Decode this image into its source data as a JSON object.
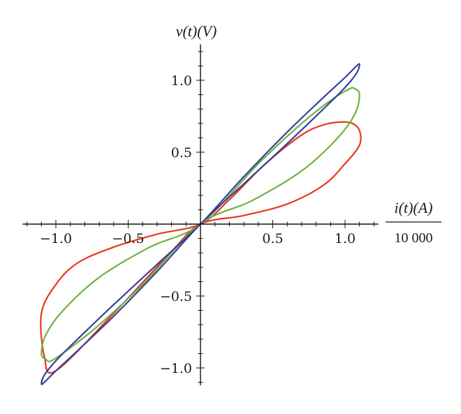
{
  "chart_data": {
    "type": "line",
    "title": "",
    "xlabel": "i(t)(A)",
    "xlabel_scale": "10 000",
    "ylabel": "v(t)(V)",
    "xlim": [
      -1.23,
      1.23
    ],
    "ylim": [
      -1.12,
      1.25
    ],
    "x_ticks": [
      -1.0,
      -0.5,
      0.5,
      1.0
    ],
    "x_tick_labels": [
      "−1.0",
      "−0.5",
      "0.5",
      "1.0"
    ],
    "y_ticks": [
      -1.0,
      -0.5,
      0.5,
      1.0
    ],
    "y_tick_labels": [
      "−1.0",
      "−0.5",
      "0.5",
      "1.0"
    ],
    "grid": false,
    "legend": "none",
    "series": [
      {
        "color": "#e8371e",
        "x": [
          0.0,
          0.3,
          0.6,
          0.85,
          1.0,
          1.1,
          1.1,
          1.05,
          0.97,
          0.85,
          0.7,
          0.45,
          0.2,
          0.0,
          -0.3,
          -0.6,
          -0.85,
          -1.0,
          -1.1,
          -1.08,
          -1.0,
          -0.6,
          -0.2,
          0.0
        ],
        "y": [
          0.0,
          0.06,
          0.14,
          0.27,
          0.42,
          0.55,
          0.65,
          0.7,
          0.71,
          0.69,
          0.62,
          0.42,
          0.17,
          0.0,
          -0.07,
          -0.16,
          -0.27,
          -0.42,
          -0.62,
          -0.92,
          -1.02,
          -0.62,
          -0.19,
          0.0
        ]
      },
      {
        "color": "#6cb33e",
        "x": [
          0.0,
          0.35,
          0.7,
          0.95,
          1.07,
          1.1,
          1.07,
          1.03,
          0.9,
          0.7,
          0.4,
          0.0,
          -0.35,
          -0.7,
          -0.95,
          -1.07,
          -1.1,
          -1.07,
          -1.03,
          -0.9,
          -0.7,
          -0.4,
          0.0
        ],
        "y": [
          0.0,
          0.16,
          0.37,
          0.6,
          0.77,
          0.9,
          0.94,
          0.94,
          0.86,
          0.7,
          0.42,
          0.0,
          -0.16,
          -0.37,
          -0.6,
          -0.77,
          -0.9,
          -0.94,
          -0.95,
          -0.86,
          -0.7,
          -0.42,
          0.0
        ]
      },
      {
        "color": "#3a3f9c",
        "x": [
          0.0,
          0.3,
          0.6,
          0.85,
          1.0,
          1.08,
          1.1,
          1.08,
          1.0,
          0.85,
          0.6,
          0.3,
          0.0,
          -0.3,
          -0.6,
          -0.85,
          -1.0,
          -1.08,
          -1.1,
          -1.08,
          -1.0,
          -0.85,
          -0.6,
          -0.3,
          0.0
        ],
        "y": [
          0.0,
          0.28,
          0.56,
          0.8,
          0.95,
          1.05,
          1.11,
          1.1,
          1.02,
          0.88,
          0.64,
          0.33,
          0.0,
          -0.28,
          -0.56,
          -0.8,
          -0.95,
          -1.05,
          -1.11,
          -1.1,
          -1.02,
          -0.88,
          -0.64,
          -0.33,
          0.0
        ]
      }
    ]
  }
}
